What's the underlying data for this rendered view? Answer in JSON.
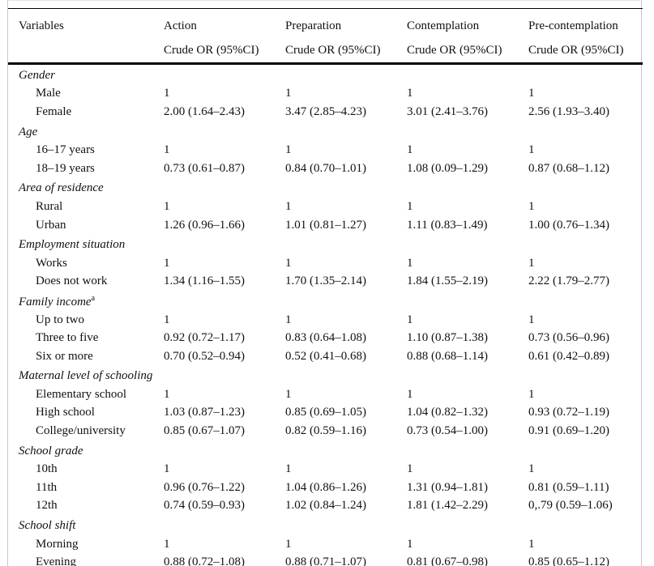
{
  "table": {
    "columns": [
      {
        "label": "Variables",
        "sublabel": ""
      },
      {
        "label": "Action",
        "sublabel": "Crude OR (95%CI)"
      },
      {
        "label": "Preparation",
        "sublabel": "Crude OR (95%CI)"
      },
      {
        "label": "Contemplation",
        "sublabel": "Crude OR (95%CI)"
      },
      {
        "label": "Pre-contemplation",
        "sublabel": "Crude OR (95%CI)"
      }
    ],
    "sections": [
      {
        "header": "Gender",
        "superscript": "",
        "rows": [
          {
            "label": "Male",
            "values": [
              "1",
              "1",
              "1",
              "1"
            ]
          },
          {
            "label": "Female",
            "values": [
              "2.00 (1.64–2.43)",
              "3.47 (2.85–4.23)",
              "3.01 (2.41–3.76)",
              "2.56 (1.93–3.40)"
            ]
          }
        ]
      },
      {
        "header": "Age",
        "superscript": "",
        "rows": [
          {
            "label": "16–17 years",
            "values": [
              "1",
              "1",
              "1",
              "1"
            ]
          },
          {
            "label": "18–19 years",
            "values": [
              "0.73 (0.61–0.87)",
              "0.84 (0.70–1.01)",
              "1.08 (0.09–1.29)",
              "0.87 (0.68–1.12)"
            ]
          }
        ]
      },
      {
        "header": "Area of residence",
        "superscript": "",
        "rows": [
          {
            "label": "Rural",
            "values": [
              "1",
              "1",
              "1",
              "1"
            ]
          },
          {
            "label": "Urban",
            "values": [
              "1.26 (0.96–1.66)",
              "1.01 (0.81–1.27)",
              "1.11 (0.83–1.49)",
              "1.00 (0.76–1.34)"
            ]
          }
        ]
      },
      {
        "header": "Employment situation",
        "superscript": "",
        "rows": [
          {
            "label": "Works",
            "values": [
              "1",
              "1",
              "1",
              "1"
            ]
          },
          {
            "label": "Does not work",
            "values": [
              "1.34 (1.16–1.55)",
              "1.70 (1.35–2.14)",
              "1.84 (1.55–2.19)",
              "2.22 (1.79–2.77)"
            ]
          }
        ]
      },
      {
        "header": "Family income",
        "superscript": "a",
        "rows": [
          {
            "label": "Up to two",
            "values": [
              "1",
              "1",
              "1",
              "1"
            ]
          },
          {
            "label": "Three to five",
            "values": [
              "0.92 (0.72–1.17)",
              "0.83 (0.64–1.08)",
              "1.10 (0.87–1.38)",
              "0.73 (0.56–0.96)"
            ]
          },
          {
            "label": "Six or more",
            "values": [
              "0.70 (0.52–0.94)",
              "0.52 (0.41–0.68)",
              "0.88 (0.68–1.14)",
              "0.61 (0.42–0.89)"
            ]
          }
        ]
      },
      {
        "header": "Maternal level of schooling",
        "superscript": "",
        "rows": [
          {
            "label": "Elementary school",
            "values": [
              "1",
              "1",
              "1",
              "1"
            ]
          },
          {
            "label": "High school",
            "values": [
              "1.03 (0.87–1.23)",
              "0.85 (0.69–1.05)",
              "1.04 (0.82–1.32)",
              "0.93 (0.72–1.19)"
            ]
          },
          {
            "label": "College/university",
            "values": [
              "0.85 (0.67–1.07)",
              "0.82 (0.59–1.16)",
              "0.73 (0.54–1.00)",
              "0.91 (0.69–1.20)"
            ]
          }
        ]
      },
      {
        "header": "School grade",
        "superscript": "",
        "rows": [
          {
            "label": "10th",
            "values": [
              "1",
              "1",
              "1",
              "1"
            ]
          },
          {
            "label": "11th",
            "values": [
              "0.96 (0.76–1.22)",
              "1.04 (0.86–1.26)",
              "1.31 (0.94–1.81)",
              "0.81 (0.59–1.11)"
            ]
          },
          {
            "label": "12th",
            "values": [
              "0.74 (0.59–0.93)",
              "1.02 (0.84–1.24)",
              "1.81 (1.42–2.29)",
              "0,.79 (0.59–1.06)"
            ]
          }
        ]
      },
      {
        "header": "School shift",
        "superscript": "",
        "rows": [
          {
            "label": "Morning",
            "values": [
              "1",
              "1",
              "1",
              "1"
            ]
          },
          {
            "label": "Evening",
            "values": [
              "0.88 (0.72–1.08)",
              "0.88 (0.71–1.07)",
              "0.81 (0.67–0.98)",
              "0.85 (0.65–1.12)"
            ]
          }
        ]
      }
    ]
  }
}
